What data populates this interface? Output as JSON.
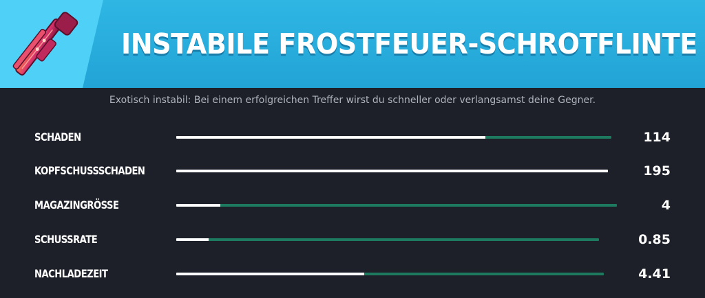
{
  "header": {
    "title": "INSTABILE FROSTFEUER-SCHROTFLINTE",
    "background_color": "#22a4d6",
    "accent_color": "#4fd0f6",
    "weapon_icon": "shotgun-icon"
  },
  "description": "Exotisch instabil: Bei einem erfolgreichen Treffer wirst du schneller oder verlangsamst deine Gegner.",
  "colors": {
    "bar_track": "#1d7a5f",
    "bar_fill": "#ffffff",
    "panel_bg": "#1d2028"
  },
  "stats": [
    {
      "label": "SCHADEN",
      "value": "114",
      "fill": 0.71
    },
    {
      "label": "KOPFSCHUSSSCHADEN",
      "value": "195",
      "fill": 1.0
    },
    {
      "label": "MAGAZINGRÖSSE",
      "value": "4",
      "fill": 0.1
    },
    {
      "label": "SCHUSSRATE",
      "value": "0.85",
      "fill": 0.077
    },
    {
      "label": "NACHLADEZEIT",
      "value": "4.41",
      "fill": 0.44
    }
  ]
}
